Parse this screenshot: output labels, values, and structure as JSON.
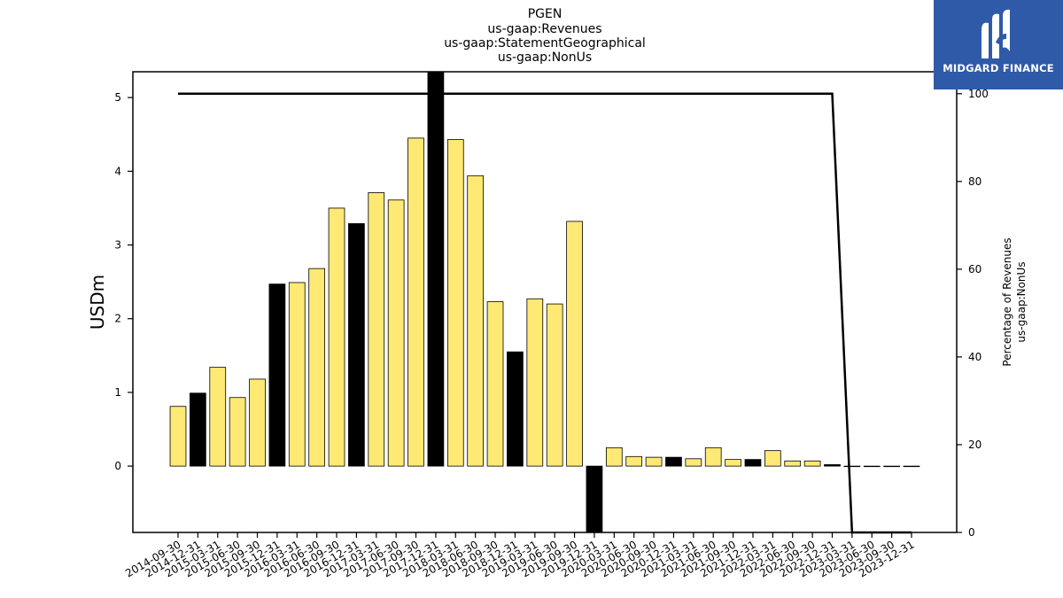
{
  "chart_data": {
    "type": "bar",
    "title_lines": [
      "PGEN",
      "us-gaap:Revenues",
      "us-gaap:StatementGeographical",
      "us-gaap:NonUs"
    ],
    "ylabel": "USDm",
    "ylabel_right_lines": [
      "Percentage of Revenues",
      "us-gaap:NonUs"
    ],
    "ylim": [
      -0.9,
      5.35
    ],
    "yticks": [
      0,
      1,
      2,
      3,
      4,
      5
    ],
    "y2lim": [
      0,
      105
    ],
    "y2ticks": [
      0,
      20,
      40,
      60,
      80,
      100
    ],
    "categories": [
      "2014-09-30",
      "2014-12-31",
      "2015-03-31",
      "2015-06-30",
      "2015-09-30",
      "2015-12-31",
      "2016-03-31",
      "2016-06-30",
      "2016-09-30",
      "2016-12-31",
      "2017-03-31",
      "2017-06-30",
      "2017-09-30",
      "2017-12-31",
      "2018-03-31",
      "2018-06-30",
      "2018-09-30",
      "2018-12-31",
      "2019-03-31",
      "2019-06-30",
      "2019-09-30",
      "2019-12-31",
      "2020-03-31",
      "2020-06-30",
      "2020-09-30",
      "2020-12-31",
      "2021-03-31",
      "2021-06-30",
      "2021-09-30",
      "2021-12-31",
      "2022-03-31",
      "2022-06-30",
      "2022-09-30",
      "2022-12-31",
      "2023-03-31",
      "2023-06-30",
      "2023-09-30",
      "2023-12-31"
    ],
    "series": [
      {
        "values": [
          0.81,
          0.99,
          1.34,
          0.93,
          1.18,
          2.47,
          2.49,
          2.68,
          3.5,
          3.29,
          3.71,
          3.61,
          4.45,
          5.4,
          4.43,
          3.94,
          2.23,
          1.55,
          2.27,
          2.2,
          3.32,
          -0.9,
          0.25,
          0.13,
          0.12,
          0.12,
          0.1,
          0.25,
          0.09,
          0.09,
          0.21,
          0.07,
          0.07,
          0.02,
          0.0,
          0.0,
          0.0,
          0.0
        ],
        "bar_colors": [
          "#fde974",
          "#000000",
          "#fde974",
          "#fde974",
          "#fde974",
          "#000000",
          "#fde974",
          "#fde974",
          "#fde974",
          "#000000",
          "#fde974",
          "#fde974",
          "#fde974",
          "#000000",
          "#fde974",
          "#fde974",
          "#fde974",
          "#000000",
          "#fde974",
          "#fde974",
          "#fde974",
          "#000000",
          "#fde974",
          "#fde974",
          "#fde974",
          "#000000",
          "#fde974",
          "#fde974",
          "#fde974",
          "#000000",
          "#fde974",
          "#fde974",
          "#fde974",
          "#000000",
          "#fde974",
          "#fde974",
          "#fde974",
          "#fde974"
        ]
      },
      {
        "type": "line",
        "axis": "right",
        "x_start_index": 0,
        "values": [
          100,
          100,
          100,
          100,
          100,
          100,
          100,
          100,
          100,
          100,
          100,
          100,
          100,
          100,
          100,
          100,
          100,
          100,
          100,
          100,
          100,
          100,
          100,
          100,
          100,
          100,
          100,
          100,
          100,
          100,
          100,
          100,
          100,
          100,
          0,
          0,
          0,
          0
        ]
      }
    ],
    "line_x_indices": [
      0,
      1,
      2,
      3,
      4,
      5,
      6,
      7,
      8,
      9,
      10,
      11,
      12,
      13,
      14,
      15,
      16,
      17,
      18,
      19,
      20,
      21,
      22,
      23,
      24,
      25,
      26,
      27,
      28,
      29,
      30,
      31,
      32,
      33,
      34,
      35,
      36,
      37
    ],
    "colors": {
      "highlight": "#fde974",
      "dark": "#000000",
      "line": "#000000"
    },
    "grid": false
  },
  "logo": {
    "text": "MIDGARD FINANCE",
    "icon": "midgard-logo-icon",
    "color": "#2f5aa8"
  }
}
